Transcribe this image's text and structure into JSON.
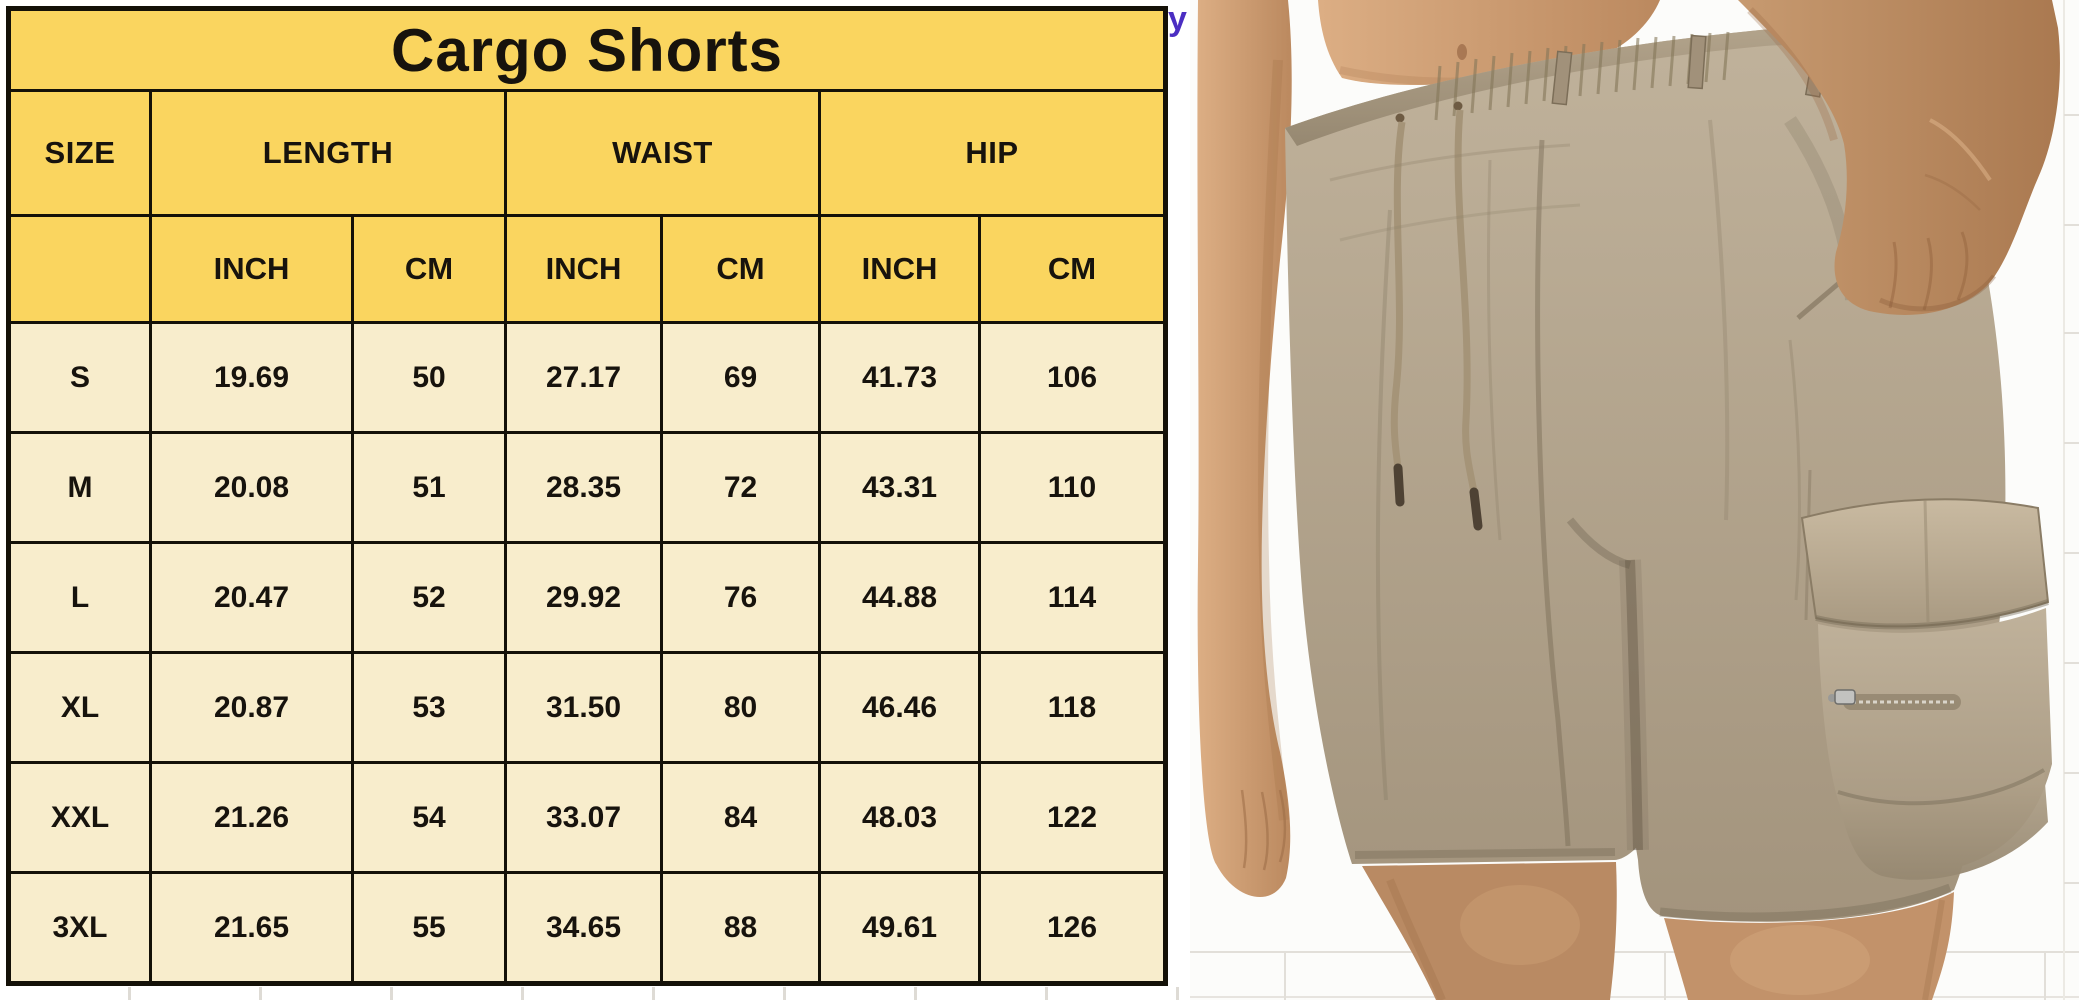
{
  "title": "Cargo Shorts",
  "stray_glyph": "y",
  "table": {
    "column_groups": [
      {
        "label": "SIZE",
        "span": 1
      },
      {
        "label": "LENGTH",
        "span": 2
      },
      {
        "label": "WAIST",
        "span": 2
      },
      {
        "label": "HIP",
        "span": 2
      }
    ],
    "unit_row": [
      "",
      "INCH",
      "CM",
      "INCH",
      "CM",
      "INCH",
      "CM"
    ],
    "rows": [
      [
        "S",
        "19.69",
        "50",
        "27.17",
        "69",
        "41.73",
        "106"
      ],
      [
        "M",
        "20.08",
        "51",
        "28.35",
        "72",
        "43.31",
        "110"
      ],
      [
        "L",
        "20.47",
        "52",
        "29.92",
        "76",
        "44.88",
        "114"
      ],
      [
        "XL",
        "20.87",
        "53",
        "31.50",
        "80",
        "46.46",
        "118"
      ],
      [
        "XXL",
        "21.26",
        "54",
        "33.07",
        "84",
        "48.03",
        "122"
      ],
      [
        "3XL",
        "21.65",
        "55",
        "34.65",
        "88",
        "49.61",
        "126"
      ]
    ]
  },
  "colors": {
    "header_yellow": "#fad55f",
    "row_cream": "#f8edcc",
    "border_black": "#141108",
    "stray_purple": "#4b2ec2",
    "shorts_khaki": "#b3a48c",
    "skin_tan": "#c49068"
  }
}
